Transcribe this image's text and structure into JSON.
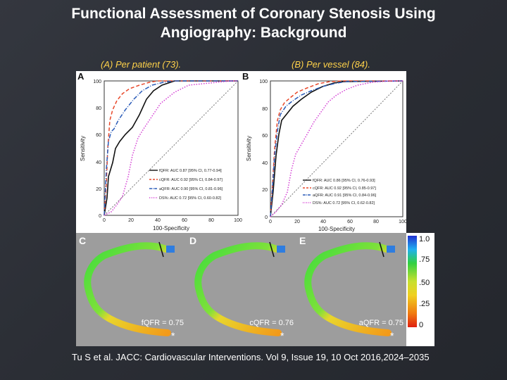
{
  "slide": {
    "title_line1": "Functional Assessment of Coronary Stenosis Using",
    "title_line2": "Angiography: Background",
    "caption_a": "(A) Per patient (73).",
    "caption_b": "(B) Per vessel (84).",
    "citation_author": "Tu S et al.",
    "citation_rest": "JACC: Cardiovascular Interventions. Vol 9, Issue 19, 10 Oct 2016,2024–2035"
  },
  "figure": {
    "panel_a": {
      "letter": "A",
      "ylabel": "Sensitivity",
      "xlabel": "100-Specificity",
      "ticks": [
        "0",
        "20",
        "40",
        "60",
        "80",
        "100"
      ],
      "legend": [
        {
          "label": "fQFR: AUC 0.87 [95% CI, 0.77-0.94]",
          "color": "#111111",
          "dash": "solid"
        },
        {
          "label": "cQFR: AUC 0.92 [95% CI, 0.84-0.97]",
          "color": "#e8482a",
          "dash": "dash"
        },
        {
          "label": "aQFR: AUC 0.90 [95% CI, 0.81-0.96]",
          "color": "#2a5bb8",
          "dash": "dashdot"
        },
        {
          "label": "DS%: AUC 0.72 [95% CI, 0.60-0.82]",
          "color": "#d43fd4",
          "dash": "dot"
        }
      ]
    },
    "panel_b": {
      "letter": "B",
      "ylabel": "Sensitivity",
      "xlabel": "100-Specificity",
      "ticks": [
        "0",
        "20",
        "40",
        "60",
        "80",
        "100"
      ],
      "legend": [
        {
          "label": "fQFR: AUC 0.86 [95% CI, 0.76-0.93]",
          "color": "#111111",
          "dash": "solid"
        },
        {
          "label": "cQFR: AUC 0.92 [95% CI, 0.85-0.97]",
          "color": "#e8482a",
          "dash": "dash"
        },
        {
          "label": "aQFR: AUC 0.91 [95% CI, 0.84-0.96]",
          "color": "#2a5bb8",
          "dash": "dashdot"
        },
        {
          "label": "DS%: AUC 0.72 [95% CI, 0.62-0.82]",
          "color": "#d43fd4",
          "dash": "dot"
        }
      ]
    },
    "panel_c": {
      "letter": "C",
      "value_label": "fQFR = 0.75",
      "marker": "*"
    },
    "panel_d": {
      "letter": "D",
      "value_label": "cQFR = 0.76",
      "marker": "*"
    },
    "panel_e": {
      "letter": "E",
      "value_label": "aQFR = 0.75",
      "marker": "*"
    },
    "colorbar": {
      "labels": [
        "1.0",
        ".75",
        ".50",
        ".25",
        "0"
      ]
    }
  }
}
